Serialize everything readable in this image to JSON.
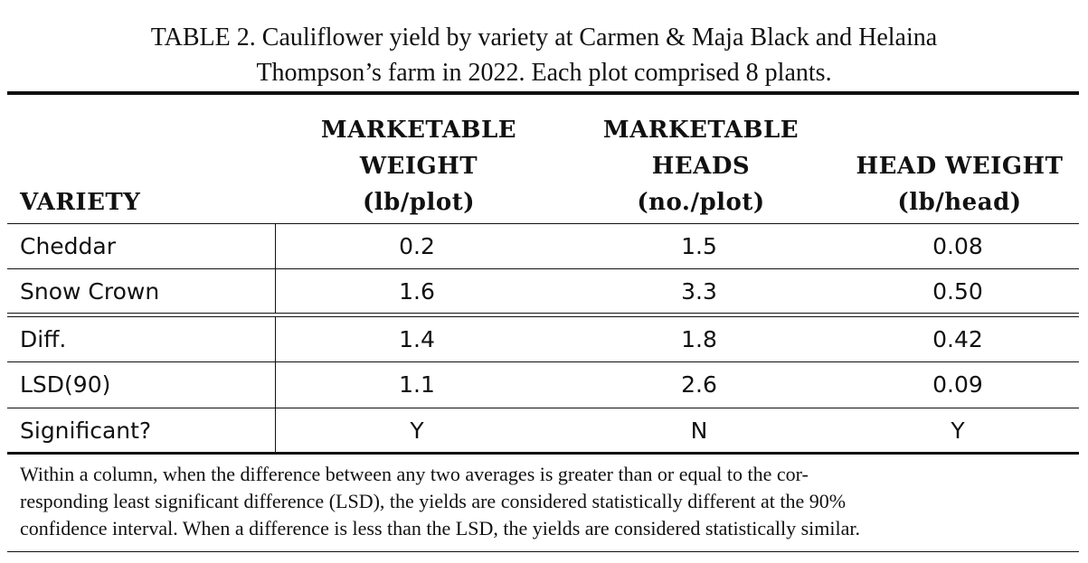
{
  "caption": {
    "line1": "TABLE 2. Cauliflower yield by variety at Carmen & Maja Black and Helaina",
    "line2": "Thompson’s farm in 2022. Each plot comprised 8 plants."
  },
  "headers": {
    "variety": "VARIETY",
    "marketable_weight": [
      "MARKETABLE",
      "WEIGHT",
      "(lb/plot)"
    ],
    "marketable_heads": [
      "MARKETABLE",
      "HEADS",
      "(no./plot)"
    ],
    "head_weight": [
      "HEAD WEIGHT",
      "(lb/head)"
    ]
  },
  "rows": [
    {
      "variety": "Cheddar",
      "marketable_weight": "0.2",
      "marketable_heads": "1.5",
      "head_weight": "0.08"
    },
    {
      "variety": "Snow Crown",
      "marketable_weight": "1.6",
      "marketable_heads": "3.3",
      "head_weight": "0.50"
    },
    {
      "variety": "Diff.",
      "marketable_weight": "1.4",
      "marketable_heads": "1.8",
      "head_weight": "0.42"
    },
    {
      "variety": "LSD(90)",
      "marketable_weight": "1.1",
      "marketable_heads": "2.6",
      "head_weight": "0.09"
    },
    {
      "variety": "Significant?",
      "marketable_weight": "Y",
      "marketable_heads": "N",
      "head_weight": "Y"
    }
  ],
  "footnote": [
    "Within a column, when the difference between any two averages is greater than or equal to the cor-",
    "responding least significant difference (LSD), the yields are considered statistically different at the 90%",
    "confidence interval. When a difference is less than the LSD, the yields are considered statistically similar."
  ]
}
